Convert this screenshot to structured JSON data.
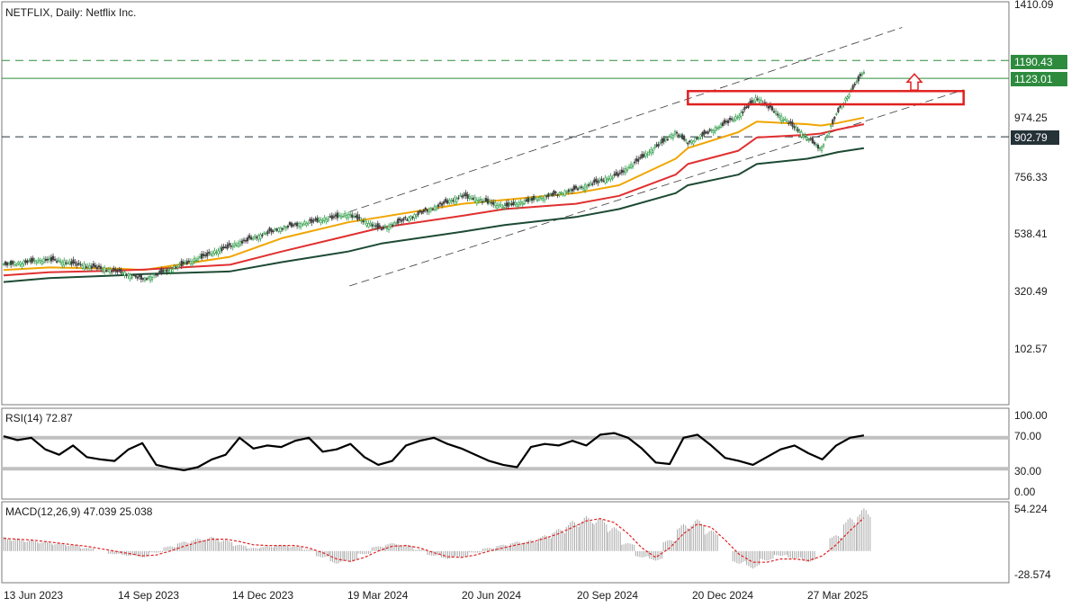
{
  "chart_data": [
    {
      "type": "candlestick",
      "title": "NETFLIX, Daily:  Netflix Inc.",
      "ylim": [
        0,
        1410.09
      ],
      "y_ticks": [
        "1410.09",
        "974.25",
        "756.33",
        "538.41",
        "320.49",
        "102.57"
      ],
      "x_ticks": [
        "13 Jun 2023",
        "14 Sep 2023",
        "14 Dec 2023",
        "19 Mar 2024",
        "20 Jun 2024",
        "20 Sep 2024",
        "20 Dec 2024",
        "27 Mar 2025"
      ],
      "price_path": [
        [
          "13 Jun 2023",
          420
        ],
        [
          "20 Jul 2023",
          440
        ],
        [
          "14 Sep 2023",
          395
        ],
        [
          "05 Oct 2023",
          365
        ],
        [
          "14 Dec 2023",
          490
        ],
        [
          "25 Jan 2024",
          560
        ],
        [
          "19 Mar 2024",
          610
        ],
        [
          "15 Apr 2024",
          555
        ],
        [
          "20 Jun 2024",
          680
        ],
        [
          "24 Jul 2024",
          640
        ],
        [
          "20 Sep 2024",
          705
        ],
        [
          "25 Oct 2024",
          760
        ],
        [
          "10 Dec 2024",
          920
        ],
        [
          "20 Dec 2024",
          880
        ],
        [
          "30 Jan 2025",
          980
        ],
        [
          "14 Feb 2025",
          1050
        ],
        [
          "27 Mar 2025",
          900
        ],
        [
          "07 Apr 2025",
          855
        ],
        [
          "21 Apr 2025",
          1000
        ],
        [
          "12 May 2025",
          1150
        ]
      ],
      "moving_averages": [
        {
          "color": "#f0a500",
          "values": [
            400,
            410,
            405,
            400,
            450,
            520,
            580,
            600,
            650,
            665,
            690,
            720,
            820,
            860,
            920,
            960,
            950,
            945,
            955,
            975
          ]
        },
        {
          "color": "#e03030",
          "values": [
            380,
            392,
            398,
            402,
            420,
            470,
            530,
            560,
            605,
            630,
            650,
            680,
            760,
            800,
            850,
            900,
            910,
            915,
            930,
            950
          ]
        },
        {
          "color": "#1d4a33",
          "values": [
            355,
            370,
            380,
            385,
            395,
            430,
            470,
            500,
            545,
            570,
            600,
            630,
            690,
            720,
            760,
            800,
            820,
            830,
            845,
            860
          ]
        }
      ],
      "horizontal_levels": [
        {
          "value": 1190.43,
          "label": "1190.43",
          "color": "#2e8b3e",
          "style": "dashed"
        },
        {
          "value": 1123.01,
          "label": "1123.01",
          "color": "#2e8b3e",
          "style": "solid"
        },
        {
          "value": 902.79,
          "label": "902.79",
          "color": "#253238",
          "style": "dashed"
        }
      ],
      "channel_lines": [
        {
          "from": [
            "20 Mar 2024",
            620
          ],
          "to": [
            "12 Jun 2025",
            1315
          ]
        },
        {
          "from": [
            "20 Mar 2024",
            340
          ],
          "to": [
            "01 Aug 2025",
            1080
          ]
        }
      ],
      "resistance_zone": {
        "from": "20 Dec 2024",
        "to": "01 Aug 2025",
        "low": 1025,
        "high": 1075,
        "color": "#e02020"
      },
      "arrow": {
        "direction": "up",
        "color": "#e02020"
      }
    },
    {
      "type": "line",
      "title": "RSI(14) 72.87",
      "ylim": [
        0,
        100
      ],
      "y_ticks": [
        "100.00",
        "70.00",
        "30.00",
        "0.00"
      ],
      "levels": [
        70,
        30
      ],
      "values": [
        72,
        67,
        70,
        55,
        48,
        60,
        45,
        42,
        40,
        55,
        63,
        35,
        31,
        28,
        32,
        42,
        48,
        70,
        56,
        60,
        58,
        66,
        70,
        52,
        55,
        62,
        45,
        35,
        40,
        60,
        66,
        70,
        62,
        56,
        48,
        40,
        35,
        32,
        58,
        62,
        60,
        66,
        60,
        74,
        76,
        70,
        56,
        38,
        36,
        70,
        74,
        60,
        44,
        40,
        35,
        45,
        55,
        60,
        50,
        42,
        60,
        70,
        73
      ]
    },
    {
      "type": "bar+line",
      "title": "MACD(12,26,9) 47.039 25.038",
      "ylim": [
        -34,
        56
      ],
      "y_ticks": [
        "54.224",
        "-28.574"
      ],
      "histogram": [
        18,
        16,
        14,
        12,
        10,
        8,
        4,
        0,
        -4,
        -6,
        -8,
        -2,
        6,
        12,
        16,
        18,
        14,
        8,
        4,
        6,
        8,
        6,
        2,
        -8,
        -16,
        -14,
        -4,
        6,
        10,
        8,
        2,
        -6,
        -10,
        -8,
        -2,
        4,
        8,
        12,
        14,
        20,
        28,
        38,
        44,
        42,
        30,
        10,
        -8,
        -12,
        14,
        34,
        40,
        26,
        0,
        -16,
        -22,
        -12,
        -6,
        -10,
        -14,
        0,
        20,
        42,
        54
      ],
      "signal": [
        16,
        15,
        14,
        12,
        10,
        8,
        6,
        3,
        0,
        -3,
        -6,
        -5,
        0,
        6,
        11,
        15,
        15,
        12,
        8,
        7,
        7,
        7,
        4,
        -2,
        -10,
        -13,
        -8,
        0,
        6,
        7,
        4,
        -2,
        -7,
        -8,
        -5,
        0,
        4,
        8,
        11,
        16,
        22,
        30,
        38,
        41,
        36,
        22,
        4,
        -8,
        4,
        22,
        34,
        30,
        14,
        -4,
        -14,
        -14,
        -10,
        -10,
        -12,
        -6,
        8,
        26,
        42
      ]
    }
  ]
}
